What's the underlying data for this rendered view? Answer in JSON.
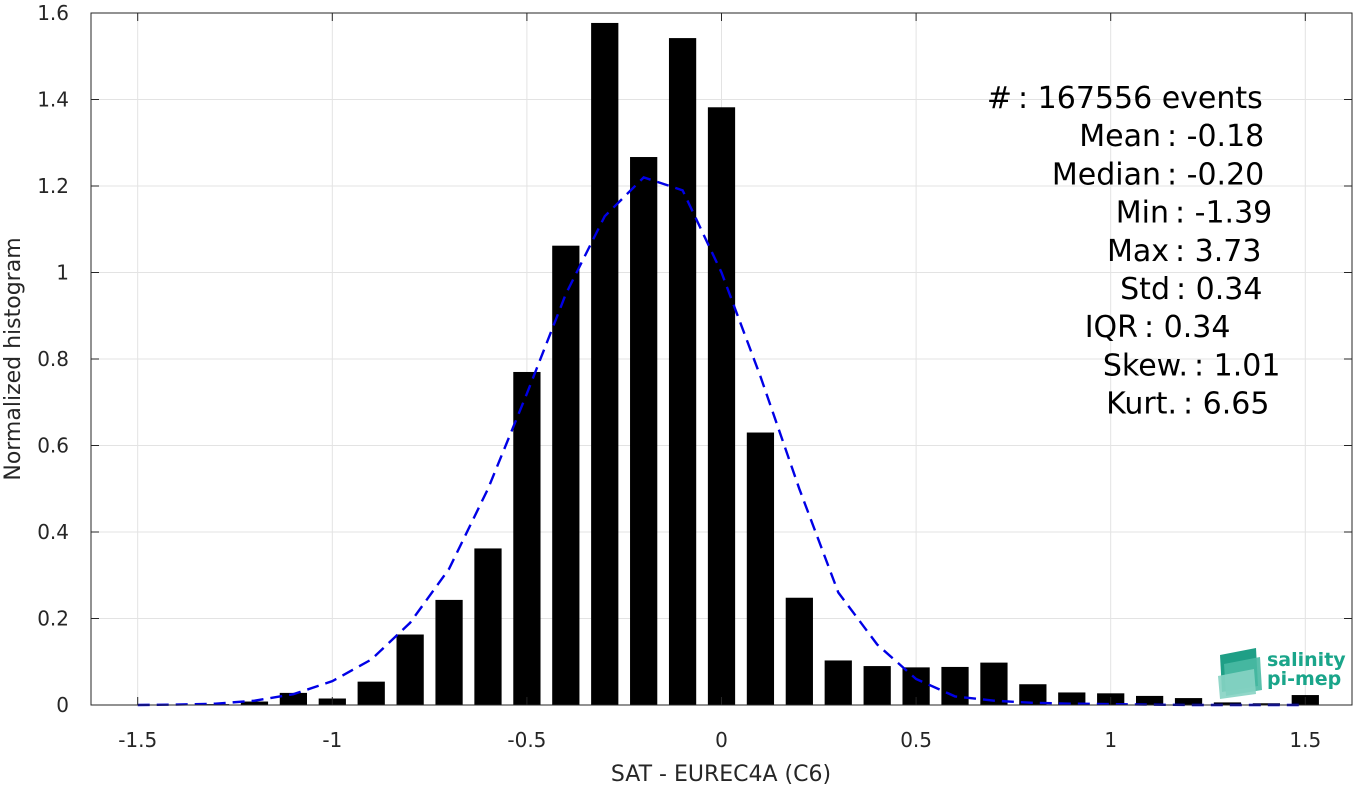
{
  "chart_data": {
    "type": "bar",
    "xlabel": "SAT - EUREC4A (C6)",
    "ylabel": "Normalized histogram",
    "xlim": [
      -1.62,
      1.62
    ],
    "ylim": [
      0,
      1.6
    ],
    "grid": true,
    "xticks": [
      -1.5,
      -1,
      -0.5,
      0,
      0.5,
      1,
      1.5
    ],
    "xtick_labels": [
      "-1.5",
      "-1",
      "-0.5",
      "0",
      "0.5",
      "1",
      "1.5"
    ],
    "yticks": [
      0,
      0.2,
      0.4,
      0.6,
      0.8,
      1,
      1.2,
      1.4,
      1.6
    ],
    "ytick_labels": [
      "0",
      "0.2",
      "0.4",
      "0.6",
      "0.8",
      "1",
      "1.2",
      "1.4",
      "1.6"
    ],
    "bin_width": 0.1,
    "bar_color": "#000000",
    "bars": [
      {
        "x": -1.5,
        "y": 0.0
      },
      {
        "x": -1.4,
        "y": 0.0
      },
      {
        "x": -1.3,
        "y": 0.002
      },
      {
        "x": -1.2,
        "y": 0.008
      },
      {
        "x": -1.1,
        "y": 0.028
      },
      {
        "x": -1.0,
        "y": 0.015
      },
      {
        "x": -0.9,
        "y": 0.054
      },
      {
        "x": -0.8,
        "y": 0.163
      },
      {
        "x": -0.7,
        "y": 0.243
      },
      {
        "x": -0.6,
        "y": 0.362
      },
      {
        "x": -0.5,
        "y": 0.77
      },
      {
        "x": -0.4,
        "y": 1.062
      },
      {
        "x": -0.3,
        "y": 1.577
      },
      {
        "x": -0.2,
        "y": 1.267
      },
      {
        "x": -0.1,
        "y": 1.542
      },
      {
        "x": 0.0,
        "y": 1.382
      },
      {
        "x": 0.1,
        "y": 0.63
      },
      {
        "x": 0.2,
        "y": 0.248
      },
      {
        "x": 0.3,
        "y": 0.103
      },
      {
        "x": 0.4,
        "y": 0.09
      },
      {
        "x": 0.5,
        "y": 0.087
      },
      {
        "x": 0.6,
        "y": 0.088
      },
      {
        "x": 0.7,
        "y": 0.098
      },
      {
        "x": 0.8,
        "y": 0.048
      },
      {
        "x": 0.9,
        "y": 0.029
      },
      {
        "x": 1.0,
        "y": 0.027
      },
      {
        "x": 1.1,
        "y": 0.021
      },
      {
        "x": 1.2,
        "y": 0.016
      },
      {
        "x": 1.3,
        "y": 0.006
      },
      {
        "x": 1.4,
        "y": 0.004
      },
      {
        "x": 1.5,
        "y": 0.023
      }
    ],
    "fit_curve": {
      "style": "dashed",
      "color": "#0000e6",
      "x": [
        -1.5,
        -1.4,
        -1.3,
        -1.2,
        -1.1,
        -1.0,
        -0.9,
        -0.8,
        -0.7,
        -0.6,
        -0.5,
        -0.4,
        -0.3,
        -0.2,
        -0.1,
        0.0,
        0.1,
        0.2,
        0.3,
        0.4,
        0.5,
        0.6,
        0.7,
        0.8,
        0.9,
        1.0,
        1.1,
        1.2,
        1.3,
        1.4,
        1.5
      ],
      "y": [
        0.0,
        0.001,
        0.003,
        0.01,
        0.025,
        0.055,
        0.105,
        0.19,
        0.315,
        0.5,
        0.72,
        0.95,
        1.13,
        1.22,
        1.19,
        1.0,
        0.76,
        0.5,
        0.26,
        0.14,
        0.06,
        0.02,
        0.01,
        0.005,
        0.003,
        0.002,
        0.001,
        0.0,
        0.0,
        0.0,
        0.0
      ]
    },
    "stats": [
      {
        "label": "#",
        "value": ": 167556 events"
      },
      {
        "label": "Mean",
        "value": ": -0.18"
      },
      {
        "label": "Median",
        "value": ": -0.20"
      },
      {
        "label": "Min",
        "value": ": -1.39"
      },
      {
        "label": "Max",
        "value": ": 3.73"
      },
      {
        "label": "Std",
        "value": ": 0.34"
      },
      {
        "label": "IQR",
        "value": ": 0.34"
      },
      {
        "label": "Skew.",
        "value": ": 1.01"
      },
      {
        "label": "Kurt.",
        "value": ": 6.65"
      }
    ]
  },
  "logo": {
    "line1": "salinity",
    "line2": "pi-mep",
    "color": "#1aa58a"
  }
}
